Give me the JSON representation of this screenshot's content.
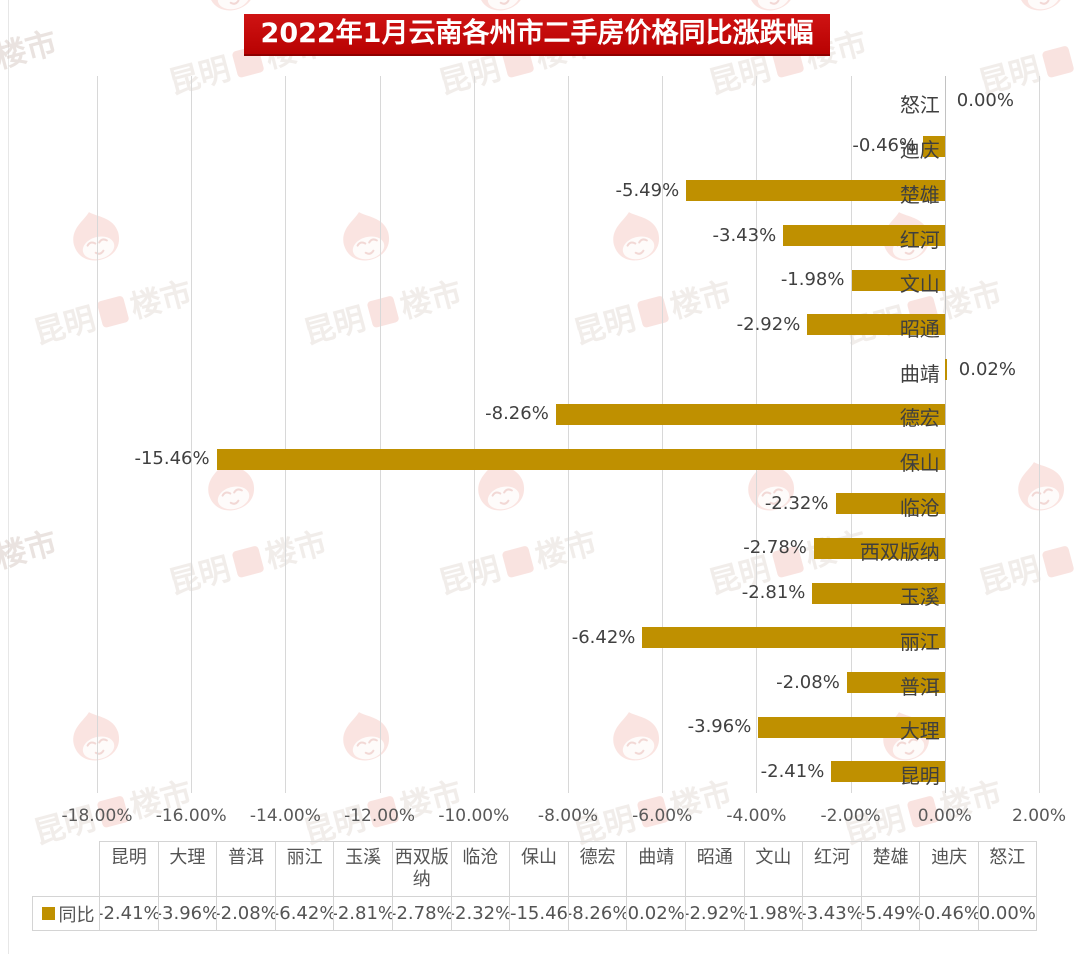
{
  "title": {
    "text": "2022年1月云南各州市二手房价格同比涨跌幅"
  },
  "watermark": {
    "brand": "昆明楼市",
    "text_left": "昆明",
    "text_right": "楼市"
  },
  "colors": {
    "bar": "#BF9000",
    "banner_red": "#C00000",
    "grid": "#D8D8D8",
    "zero_axis": "#C2C2C2",
    "label_text": "#404040",
    "axis_text": "#595959",
    "table_border": "#D4D4D4",
    "watermark_pink": "#EFB3AA"
  },
  "chart_data": {
    "type": "bar",
    "orientation": "horizontal",
    "title": "2022年1月云南各州市二手房价格同比涨跌幅",
    "legend_entries": [
      "同比"
    ],
    "legend_position": "bottom-table",
    "grid": true,
    "xlim": [
      -18,
      2
    ],
    "x_ticks": {
      "values": [
        -18,
        -16,
        -14,
        -12,
        -10,
        -8,
        -6,
        -4,
        -2,
        0,
        2
      ],
      "labels": [
        "-18.00%",
        "-16.00%",
        "-14.00%",
        "-12.00%",
        "-10.00%",
        "-8.00%",
        "-6.00%",
        "-4.00%",
        "-2.00%",
        "0.00%",
        "2.00%"
      ]
    },
    "categories": [
      "怒江",
      "迪庆",
      "楚雄",
      "红河",
      "文山",
      "昭通",
      "曲靖",
      "德宏",
      "保山",
      "临沧",
      "西双版纳",
      "玉溪",
      "丽江",
      "普洱",
      "大理",
      "昆明"
    ],
    "series": [
      {
        "name": "同比",
        "values": [
          0.0,
          -0.46,
          -5.49,
          -3.43,
          -1.98,
          -2.92,
          0.02,
          -8.26,
          -15.46,
          -2.32,
          -2.78,
          -2.81,
          -6.42,
          -2.08,
          -3.96,
          -2.41
        ],
        "labels": [
          "0.00%",
          "-0.46%",
          "-5.49%",
          "-3.43%",
          "-1.98%",
          "-2.92%",
          "0.02%",
          "-8.26%",
          "-15.46%",
          "-2.32%",
          "-2.78%",
          "-2.81%",
          "-6.42%",
          "-2.08%",
          "-3.96%",
          "-2.41%"
        ]
      }
    ]
  },
  "table": {
    "legend_label": "同比",
    "columns": [
      "昆明",
      "大理",
      "普洱",
      "丽江",
      "玉溪",
      "西双版纳",
      "临沧",
      "保山",
      "德宏",
      "曲靖",
      "昭通",
      "文山",
      "红河",
      "楚雄",
      "迪庆",
      "怒江"
    ],
    "values": [
      "-2.41%",
      "-3.96%",
      "-2.08%",
      "-6.42%",
      "-2.81%",
      "-2.78%",
      "-2.32%",
      "-15.46",
      "-8.26%",
      "0.02%",
      "-2.92%",
      "-1.98%",
      "-3.43%",
      "-5.49%",
      "-0.46%",
      "0.00%"
    ]
  }
}
